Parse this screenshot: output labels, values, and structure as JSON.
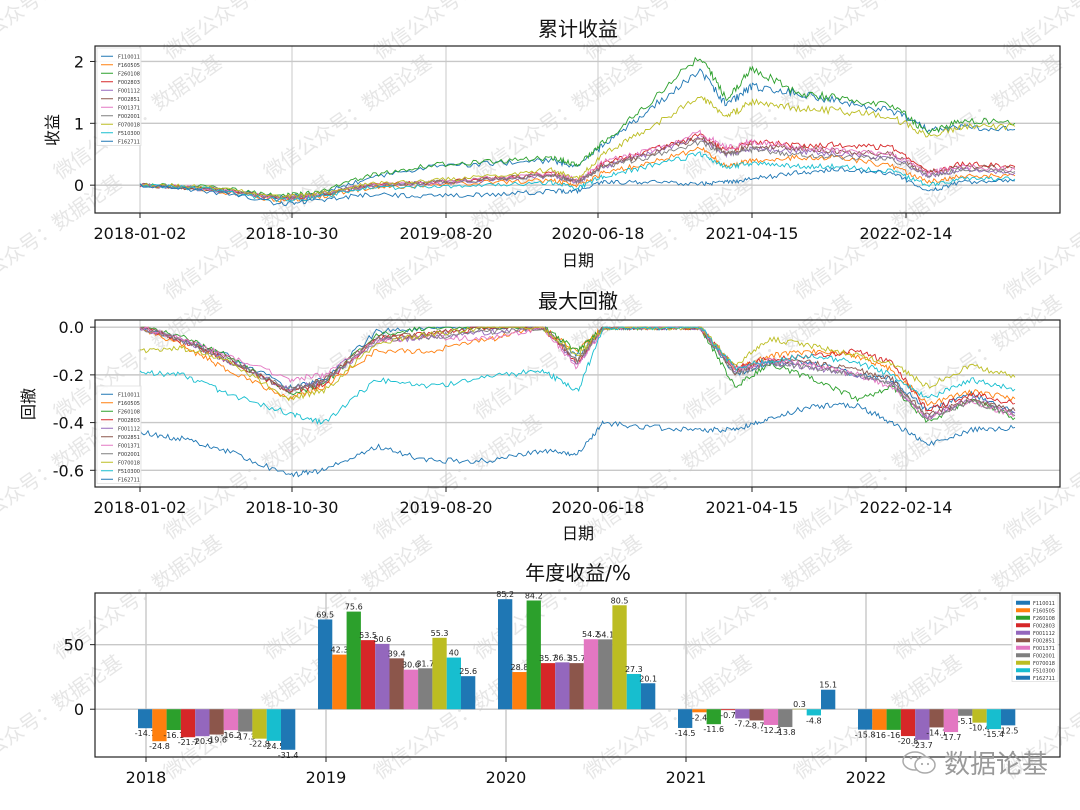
{
  "figure": {
    "watermark_text": "微信公众号：数据论基",
    "brand_text": "数据论基"
  },
  "funds": [
    "F110011",
    "F160505",
    "F260108",
    "F002803",
    "F001112",
    "F002851",
    "F001371",
    "F002001",
    "F070018",
    "F510300",
    "F162711"
  ],
  "colors": [
    "#1f77b4",
    "#ff7f0e",
    "#2ca02c",
    "#d62728",
    "#9467bd",
    "#8c564b",
    "#e377c2",
    "#7f7f7f",
    "#bcbd22",
    "#17becf",
    "#1f77b4"
  ],
  "chart_data": [
    {
      "type": "line",
      "title": "累计收益",
      "xlabel": "日期",
      "ylabel": "收益",
      "x_ticks": [
        "2018-01-02",
        "2018-10-30",
        "2019-08-20",
        "2020-06-18",
        "2021-04-15",
        "2022-02-14"
      ],
      "y_ticks": [
        "0",
        "1",
        "2"
      ],
      "ylim": [
        -0.45,
        2.25
      ],
      "grid": true,
      "legend_position": "upper left",
      "x_frac_points": [
        0,
        0.08,
        0.16,
        0.2,
        0.26,
        0.33,
        0.4,
        0.47,
        0.5,
        0.53,
        0.58,
        0.64,
        0.67,
        0.7,
        0.75,
        0.8,
        0.86,
        0.9,
        0.94,
        1.0
      ],
      "series": [
        {
          "name": "F110011",
          "values": [
            0,
            -0.05,
            -0.2,
            -0.15,
            0.1,
            0.3,
            0.35,
            0.4,
            0.3,
            0.65,
            1.2,
            1.85,
            1.3,
            1.6,
            1.5,
            1.35,
            1.2,
            0.9,
            0.95,
            0.9
          ]
        },
        {
          "name": "F160505",
          "values": [
            0,
            -0.08,
            -0.25,
            -0.2,
            -0.05,
            0.0,
            0.05,
            0.08,
            0.0,
            0.2,
            0.35,
            0.6,
            0.3,
            0.4,
            0.45,
            0.45,
            0.3,
            0.05,
            0.15,
            0.15
          ]
        },
        {
          "name": "F260108",
          "values": [
            0,
            -0.02,
            -0.18,
            -0.12,
            0.15,
            0.32,
            0.38,
            0.45,
            0.33,
            0.7,
            1.3,
            2.1,
            1.4,
            1.9,
            1.5,
            1.4,
            1.3,
            0.85,
            1.05,
            1.0
          ]
        },
        {
          "name": "F002803",
          "values": [
            0,
            -0.06,
            -0.22,
            -0.17,
            0.0,
            0.05,
            0.1,
            0.2,
            0.05,
            0.35,
            0.55,
            0.8,
            0.55,
            0.7,
            0.65,
            0.65,
            0.6,
            0.2,
            0.35,
            0.3
          ]
        },
        {
          "name": "F001112",
          "values": [
            0,
            -0.07,
            -0.23,
            -0.18,
            -0.02,
            0.03,
            0.08,
            0.15,
            0.05,
            0.3,
            0.5,
            0.75,
            0.5,
            0.6,
            0.55,
            0.5,
            0.45,
            0.15,
            0.25,
            0.2
          ]
        },
        {
          "name": "F002851",
          "values": [
            0,
            -0.06,
            -0.2,
            -0.16,
            -0.01,
            0.04,
            0.1,
            0.18,
            0.06,
            0.32,
            0.5,
            0.78,
            0.52,
            0.65,
            0.6,
            0.55,
            0.5,
            0.2,
            0.3,
            0.28
          ]
        },
        {
          "name": "F001371",
          "values": [
            0,
            -0.05,
            -0.2,
            -0.15,
            0.0,
            0.05,
            0.12,
            0.2,
            0.08,
            0.38,
            0.55,
            0.85,
            0.6,
            0.7,
            0.62,
            0.55,
            0.5,
            0.2,
            0.3,
            0.25
          ]
        },
        {
          "name": "F002001",
          "values": [
            0,
            -0.06,
            -0.21,
            -0.16,
            -0.01,
            0.04,
            0.09,
            0.17,
            0.05,
            0.3,
            0.45,
            0.7,
            0.5,
            0.58,
            0.5,
            0.45,
            0.42,
            0.15,
            0.25,
            0.22
          ]
        },
        {
          "name": "F070018",
          "values": [
            0,
            -0.03,
            -0.2,
            -0.15,
            0.02,
            0.07,
            0.15,
            0.25,
            0.12,
            0.5,
            0.9,
            1.45,
            1.1,
            1.35,
            1.25,
            1.2,
            1.1,
            0.8,
            0.95,
            0.95
          ]
        },
        {
          "name": "F510300",
          "values": [
            0,
            -0.06,
            -0.25,
            -0.2,
            -0.05,
            -0.02,
            0.0,
            0.05,
            -0.05,
            0.15,
            0.3,
            0.5,
            0.3,
            0.35,
            0.3,
            0.3,
            0.22,
            0.0,
            0.1,
            0.1
          ]
        },
        {
          "name": "F162711",
          "values": [
            0,
            -0.1,
            -0.3,
            -0.25,
            -0.15,
            -0.18,
            -0.15,
            -0.1,
            -0.1,
            0.05,
            0.05,
            0.02,
            0.05,
            0.1,
            0.2,
            0.25,
            0.2,
            -0.1,
            0.05,
            0.07
          ]
        }
      ]
    },
    {
      "type": "line",
      "title": "最大回撤",
      "xlabel": "日期",
      "ylabel": "回撤",
      "x_ticks": [
        "2018-01-02",
        "2018-10-30",
        "2019-08-20",
        "2020-06-18",
        "2021-04-15",
        "2022-02-14"
      ],
      "y_ticks": [
        "0.0",
        "-0.2",
        "-0.4",
        "-0.6"
      ],
      "ylim": [
        -0.67,
        0.03
      ],
      "grid": true,
      "legend_position": "lower left",
      "x_frac_points": [
        0,
        0.05,
        0.1,
        0.17,
        0.21,
        0.27,
        0.33,
        0.4,
        0.46,
        0.5,
        0.53,
        0.58,
        0.64,
        0.68,
        0.72,
        0.77,
        0.82,
        0.86,
        0.9,
        0.95,
        1.0
      ],
      "series": [
        {
          "name": "F110011",
          "values": [
            0,
            -0.05,
            -0.12,
            -0.25,
            -0.22,
            -0.02,
            0,
            0,
            0,
            -0.12,
            0,
            0,
            0,
            -0.2,
            -0.15,
            -0.15,
            -0.2,
            -0.22,
            -0.35,
            -0.28,
            -0.36
          ]
        },
        {
          "name": "F160505",
          "values": [
            0,
            -0.08,
            -0.18,
            -0.3,
            -0.25,
            -0.1,
            -0.1,
            -0.05,
            0,
            -0.1,
            0,
            0,
            0,
            -0.18,
            -0.12,
            -0.1,
            -0.12,
            -0.18,
            -0.32,
            -0.27,
            -0.3
          ]
        },
        {
          "name": "F260108",
          "values": [
            0,
            -0.04,
            -0.12,
            -0.28,
            -0.24,
            -0.03,
            0,
            0,
            0,
            -0.1,
            0,
            0,
            0,
            -0.25,
            -0.15,
            -0.22,
            -0.3,
            -0.25,
            -0.4,
            -0.3,
            -0.38
          ]
        },
        {
          "name": "F002803",
          "values": [
            0,
            -0.06,
            -0.14,
            -0.27,
            -0.24,
            -0.05,
            -0.03,
            0,
            0,
            -0.15,
            0,
            0,
            0,
            -0.17,
            -0.13,
            -0.12,
            -0.1,
            -0.15,
            -0.35,
            -0.28,
            -0.32
          ]
        },
        {
          "name": "F001112",
          "values": [
            0,
            -0.06,
            -0.14,
            -0.26,
            -0.23,
            -0.06,
            -0.04,
            -0.02,
            0,
            -0.16,
            0,
            0,
            0,
            -0.18,
            -0.15,
            -0.17,
            -0.2,
            -0.24,
            -0.38,
            -0.3,
            -0.36
          ]
        },
        {
          "name": "F002851",
          "values": [
            0,
            -0.05,
            -0.13,
            -0.27,
            -0.22,
            -0.04,
            -0.03,
            0,
            0,
            -0.14,
            0,
            0,
            0,
            -0.19,
            -0.14,
            -0.15,
            -0.18,
            -0.22,
            -0.37,
            -0.3,
            -0.35
          ]
        },
        {
          "name": "F001371",
          "values": [
            0,
            -0.05,
            -0.12,
            -0.22,
            -0.2,
            -0.06,
            -0.04,
            -0.05,
            0,
            -0.17,
            0,
            0,
            0,
            -0.18,
            -0.14,
            -0.16,
            -0.2,
            -0.25,
            -0.38,
            -0.31,
            -0.37
          ]
        },
        {
          "name": "F002001",
          "values": [
            0,
            -0.06,
            -0.14,
            -0.26,
            -0.23,
            -0.05,
            -0.04,
            -0.02,
            0,
            -0.14,
            0,
            0,
            0,
            -0.2,
            -0.15,
            -0.17,
            -0.2,
            -0.24,
            -0.38,
            -0.31,
            -0.37
          ]
        },
        {
          "name": "F070018",
          "values": [
            -0.1,
            -0.09,
            -0.14,
            -0.3,
            -0.27,
            -0.07,
            -0.03,
            0,
            0,
            -0.12,
            0,
            0,
            0,
            -0.16,
            -0.05,
            -0.08,
            -0.12,
            -0.15,
            -0.25,
            -0.16,
            -0.21
          ]
        },
        {
          "name": "F510300",
          "values": [
            -0.19,
            -0.2,
            -0.28,
            -0.36,
            -0.4,
            -0.22,
            -0.25,
            -0.21,
            -0.18,
            -0.27,
            0,
            0,
            0,
            -0.17,
            -0.14,
            -0.12,
            -0.15,
            -0.2,
            -0.3,
            -0.22,
            -0.26
          ]
        },
        {
          "name": "F162711",
          "values": [
            -0.44,
            -0.47,
            -0.52,
            -0.62,
            -0.6,
            -0.5,
            -0.56,
            -0.56,
            -0.52,
            -0.53,
            -0.4,
            -0.42,
            -0.43,
            -0.43,
            -0.38,
            -0.33,
            -0.33,
            -0.4,
            -0.49,
            -0.43,
            -0.42
          ]
        }
      ]
    },
    {
      "type": "bar",
      "title": "年度收益/%",
      "xlabel": "",
      "ylabel": "",
      "categories": [
        "2018",
        "2019",
        "2020",
        "2021",
        "2022"
      ],
      "y_ticks": [
        "0",
        "50"
      ],
      "ylim": [
        -37,
        90
      ],
      "grid": true,
      "legend_position": "upper right",
      "series": [
        {
          "name": "F110011",
          "values": [
            -14.7,
            69.5,
            85.2,
            -14.5,
            -15.8
          ]
        },
        {
          "name": "F160505",
          "values": [
            -24.8,
            42.3,
            28.8,
            -2.4,
            -16
          ]
        },
        {
          "name": "F260108",
          "values": [
            -16.1,
            75.6,
            84.2,
            -11.6,
            -16
          ]
        },
        {
          "name": "F002803",
          "values": [
            -21.7,
            53.5,
            35.7,
            -0.7,
            -20.8
          ]
        },
        {
          "name": "F001112",
          "values": [
            -20.9,
            50.6,
            36.3,
            -7.2,
            -23.7
          ]
        },
        {
          "name": "F002851",
          "values": [
            -19.6,
            39.4,
            35.7,
            -8.7,
            -14.1
          ]
        },
        {
          "name": "F001371",
          "values": [
            -16.2,
            30.6,
            54.2,
            -12.2,
            -17.7
          ]
        },
        {
          "name": "F002001",
          "values": [
            -17.3,
            31.7,
            54.1,
            -13.8,
            -5.1
          ]
        },
        {
          "name": "F070018",
          "values": [
            -22.8,
            55.3,
            80.5,
            0.3,
            -10.4
          ]
        },
        {
          "name": "F510300",
          "values": [
            -24.5,
            40,
            27.3,
            -4.8,
            -15.4
          ]
        },
        {
          "name": "F162711",
          "values": [
            -31.4,
            25.6,
            20.1,
            15.1,
            -12.5
          ]
        }
      ]
    }
  ]
}
